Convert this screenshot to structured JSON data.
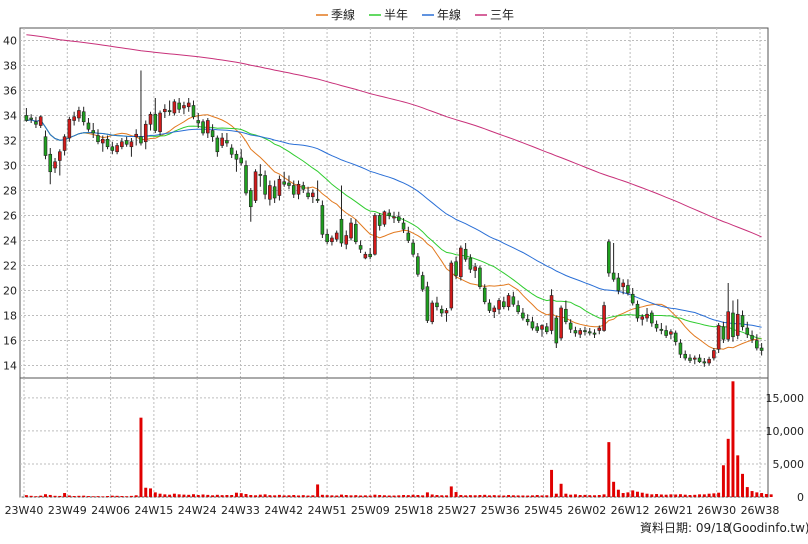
{
  "chart_data": {
    "type": "candlestick",
    "legend": [
      {
        "label": "季線",
        "color": "#e2791e"
      },
      {
        "label": "半年",
        "color": "#2fcc2f"
      },
      {
        "label": "年線",
        "color": "#2a6fd6"
      },
      {
        "label": "三年",
        "color": "#c8317a"
      }
    ],
    "price_axis": {
      "ylim": [
        13,
        41
      ],
      "ticks": [
        14,
        16,
        18,
        20,
        22,
        24,
        26,
        28,
        30,
        32,
        34,
        36,
        38,
        40
      ]
    },
    "volume_axis": {
      "ylim": [
        0,
        18000
      ],
      "ticks": [
        0,
        5000,
        10000,
        15000
      ],
      "tick_labels": [
        "0",
        "5,000",
        "10,000",
        "15,000"
      ]
    },
    "x_tick_labels": [
      "23W40",
      "23W49",
      "24W06",
      "24W15",
      "24W24",
      "24W33",
      "24W42",
      "24W51",
      "25W09",
      "25W18",
      "25W27",
      "25W36",
      "25W45",
      "26W02",
      "26W12",
      "26W21",
      "26W30",
      "26W38"
    ],
    "candles": [
      [
        34,
        34.6,
        33.5,
        33.6
      ],
      [
        33.8,
        34.1,
        33.4,
        33.7
      ],
      [
        33.5,
        33.9,
        33,
        33.3
      ],
      [
        33.2,
        34,
        33,
        33.9
      ],
      [
        32.3,
        32.8,
        30.5,
        30.8
      ],
      [
        30.9,
        31.4,
        28.5,
        29.5
      ],
      [
        29.8,
        30.6,
        29.4,
        30.3
      ],
      [
        30.4,
        31.3,
        29.2,
        31.1
      ],
      [
        31.2,
        32.5,
        30.8,
        32.3
      ],
      [
        32.2,
        33.9,
        31.9,
        33.7
      ],
      [
        33.6,
        34.3,
        33.2,
        33.9
      ],
      [
        33.8,
        34.7,
        33.5,
        34.4
      ],
      [
        34.3,
        34.7,
        33.2,
        33.5
      ],
      [
        33.4,
        33.8,
        32.7,
        32.9
      ],
      [
        32.8,
        33.4,
        32.2,
        32.6
      ],
      [
        32.4,
        32.9,
        31.7,
        31.9
      ],
      [
        31.8,
        32.4,
        31.1,
        32.1
      ],
      [
        32.1,
        32.4,
        31.3,
        31.5
      ],
      [
        31.5,
        31.9,
        30.9,
        31.2
      ],
      [
        31.1,
        31.8,
        30.9,
        31.6
      ],
      [
        31.5,
        32.2,
        31.3,
        31.9
      ],
      [
        32,
        32.3,
        31.5,
        31.7
      ],
      [
        31.5,
        32.2,
        30.7,
        31.9
      ],
      [
        32.3,
        32.9,
        31.6,
        32.5
      ],
      [
        32.3,
        37.6,
        31.6,
        31.8
      ],
      [
        31.9,
        33.6,
        31.3,
        33.3
      ],
      [
        33.3,
        34.3,
        32.8,
        34.1
      ],
      [
        34.1,
        35.4,
        32.6,
        32.8
      ],
      [
        32.7,
        34.4,
        32.4,
        34.2
      ],
      [
        34.3,
        34.9,
        33.8,
        34.5
      ],
      [
        34.4,
        35.2,
        34,
        34.3
      ],
      [
        34.2,
        35.3,
        34,
        35.1
      ],
      [
        35,
        35.4,
        34.2,
        34.5
      ],
      [
        34.6,
        35.1,
        34.1,
        34.8
      ],
      [
        34.7,
        35.4,
        34.3,
        35
      ],
      [
        34.8,
        35.2,
        33.7,
        33.9
      ],
      [
        33.6,
        34.2,
        33,
        33.4
      ],
      [
        33.5,
        33.7,
        32.4,
        32.6
      ],
      [
        32.6,
        33.8,
        32.2,
        33.6
      ],
      [
        32.8,
        33.3,
        31.9,
        32.3
      ],
      [
        32.2,
        32.4,
        30.7,
        31.1
      ],
      [
        31.6,
        32.6,
        31.4,
        32.2
      ],
      [
        32,
        32.6,
        31.5,
        31.8
      ],
      [
        31.4,
        31.7,
        30.6,
        30.9
      ],
      [
        30.9,
        31.2,
        29.5,
        30.5
      ],
      [
        30.6,
        31.3,
        30,
        30.2
      ],
      [
        30,
        30.4,
        27.6,
        27.8
      ],
      [
        28,
        28.2,
        25.5,
        26.7
      ],
      [
        27.2,
        29.7,
        27,
        29.5
      ],
      [
        29.3,
        30.1,
        28.3,
        29.2
      ],
      [
        29.2,
        29.6,
        27.3,
        27.7
      ],
      [
        27.3,
        28.8,
        26.8,
        28.4
      ],
      [
        28.3,
        28.8,
        27,
        27.4
      ],
      [
        27.6,
        29.2,
        27.2,
        28.9
      ],
      [
        28.7,
        29.5,
        28.3,
        28.5
      ],
      [
        28.6,
        29.2,
        28.1,
        28.4
      ],
      [
        28.4,
        28.8,
        27.4,
        27.7
      ],
      [
        27.7,
        28.8,
        27.3,
        28.5
      ],
      [
        28.4,
        28.7,
        27.8,
        28.1
      ],
      [
        27.8,
        28.3,
        27.3,
        27.5
      ],
      [
        27.5,
        28.1,
        27,
        27.8
      ],
      [
        27.3,
        28.8,
        27,
        27.2
      ],
      [
        26.8,
        27.2,
        24.2,
        24.5
      ],
      [
        24.5,
        24.9,
        23.7,
        23.9
      ],
      [
        23.9,
        24.4,
        23.6,
        24.2
      ],
      [
        24.1,
        24.8,
        23.9,
        24.6
      ],
      [
        25.7,
        28.4,
        23.5,
        23.8
      ],
      [
        23.7,
        24.8,
        23.3,
        24.4
      ],
      [
        24.2,
        25.8,
        24,
        25.4
      ],
      [
        25.3,
        25.7,
        23.7,
        23.9
      ],
      [
        23.6,
        24,
        23,
        23.3
      ],
      [
        22.6,
        23.1,
        22.5,
        22.9
      ],
      [
        22.9,
        23.4,
        22.5,
        22.7
      ],
      [
        22.9,
        26.2,
        22.8,
        26
      ],
      [
        26,
        26.2,
        24.8,
        25.2
      ],
      [
        25.3,
        26.4,
        25.1,
        26.3
      ],
      [
        26.2,
        26.5,
        25.7,
        26
      ],
      [
        25.8,
        26.3,
        25.4,
        25.9
      ],
      [
        25.9,
        26.3,
        25.4,
        25.6
      ],
      [
        25.4,
        25.8,
        24.6,
        24.9
      ],
      [
        24.6,
        25.1,
        23.8,
        24
      ],
      [
        23.8,
        24.1,
        22.7,
        22.9
      ],
      [
        22.7,
        23,
        21.1,
        21.3
      ],
      [
        21.2,
        21.5,
        19.9,
        20.1
      ],
      [
        20.3,
        20.7,
        17.4,
        17.6
      ],
      [
        17.5,
        19.2,
        17.3,
        19
      ],
      [
        19,
        19.5,
        18.4,
        18.7
      ],
      [
        18.5,
        18.8,
        17.9,
        18.2
      ],
      [
        18.2,
        18.6,
        17.5,
        18.4
      ],
      [
        18.6,
        22.4,
        18.4,
        22.2
      ],
      [
        22.3,
        22.7,
        20.9,
        21.2
      ],
      [
        21.1,
        23.6,
        20.8,
        23.4
      ],
      [
        23.3,
        23.8,
        22.3,
        22.5
      ],
      [
        22.6,
        22.9,
        21.4,
        21.7
      ],
      [
        21.6,
        22.2,
        21,
        21.9
      ],
      [
        21.8,
        22,
        20.1,
        20.3
      ],
      [
        20.2,
        20.5,
        18.9,
        19.1
      ],
      [
        19,
        19.3,
        18.2,
        18.4
      ],
      [
        18.3,
        18.8,
        17.8,
        18.6
      ],
      [
        18.5,
        19.4,
        18.1,
        19.2
      ],
      [
        19.1,
        19.5,
        18.5,
        18.7
      ],
      [
        18.7,
        19.8,
        18.4,
        19.6
      ],
      [
        19.5,
        19.9,
        18.7,
        18.9
      ],
      [
        18.8,
        19.2,
        18.1,
        18.3
      ],
      [
        18.2,
        18.6,
        17.6,
        17.8
      ],
      [
        17.7,
        18.1,
        17.2,
        17.5
      ],
      [
        17.5,
        17.9,
        16.8,
        17
      ],
      [
        17.1,
        17.4,
        16.6,
        16.8
      ],
      [
        16.9,
        17.3,
        16.3,
        17.2
      ],
      [
        17.1,
        17.4,
        16.5,
        16.7
      ],
      [
        16.8,
        20.1,
        16.5,
        19.6
      ],
      [
        17.8,
        18,
        15.4,
        15.8
      ],
      [
        16.2,
        18.8,
        16,
        18.6
      ],
      [
        18.5,
        19.2,
        17.3,
        17.5
      ],
      [
        17.4,
        17.7,
        16.6,
        16.9
      ],
      [
        16.8,
        17.1,
        16.3,
        16.6
      ],
      [
        16.5,
        17,
        16.2,
        16.8
      ],
      [
        16.8,
        17.1,
        16.4,
        16.7
      ],
      [
        16.7,
        17,
        16.4,
        16.6
      ],
      [
        16.6,
        16.9,
        16.2,
        16.5
      ],
      [
        16.8,
        17.2,
        16.5,
        17
      ],
      [
        16.8,
        19.1,
        16.7,
        18.8
      ],
      [
        23.9,
        24.1,
        21.1,
        21.4
      ],
      [
        21.4,
        23.8,
        20.7,
        20.9
      ],
      [
        21,
        21.4,
        19.7,
        20
      ],
      [
        20.3,
        20.9,
        19.7,
        20.6
      ],
      [
        20.4,
        20.9,
        19.6,
        19.8
      ],
      [
        19.7,
        20.2,
        18.8,
        19
      ],
      [
        18.9,
        19.2,
        17.5,
        17.8
      ],
      [
        17.7,
        18.1,
        17.2,
        17.9
      ],
      [
        17.8,
        18.6,
        17.5,
        18.1
      ],
      [
        18.2,
        18.4,
        17.1,
        17.4
      ],
      [
        17.3,
        17.6,
        16.7,
        17
      ],
      [
        16.9,
        17.4,
        16.5,
        16.8
      ],
      [
        16.8,
        17.2,
        16.2,
        16.4
      ],
      [
        16.5,
        16.9,
        16.1,
        16.7
      ],
      [
        16.6,
        16.8,
        15.6,
        15.9
      ],
      [
        15.8,
        16.1,
        14.6,
        14.9
      ],
      [
        14.9,
        15.2,
        14.4,
        14.6
      ],
      [
        14.6,
        14.9,
        14.2,
        14.4
      ],
      [
        14.5,
        14.8,
        14.1,
        14.6
      ],
      [
        14.6,
        14.9,
        14.2,
        14.3
      ],
      [
        14.3,
        14.6,
        13.9,
        14.2
      ],
      [
        14.2,
        14.7,
        14,
        14.5
      ],
      [
        14.6,
        15.4,
        14.4,
        15.2
      ],
      [
        15.3,
        17.4,
        15,
        17.2
      ],
      [
        17.1,
        17.5,
        15.8,
        16.1
      ],
      [
        16.1,
        20.6,
        15.9,
        18.3
      ],
      [
        18.2,
        19.2,
        15.9,
        16.3
      ],
      [
        16.4,
        19.3,
        16.1,
        18.1
      ],
      [
        18,
        18.4,
        16.8,
        17.1
      ],
      [
        17,
        17.5,
        16.2,
        16.5
      ],
      [
        16.4,
        16.8,
        15.8,
        16.1
      ],
      [
        16,
        16.5,
        15.2,
        15.4
      ],
      [
        15.4,
        15.8,
        14.8,
        15.2
      ]
    ],
    "volumes": [
      280,
      180,
      120,
      200,
      420,
      310,
      180,
      160,
      600,
      230,
      150,
      180,
      200,
      140,
      110,
      130,
      100,
      150,
      200,
      180,
      150,
      120,
      170,
      260,
      12000,
      1400,
      1300,
      700,
      500,
      400,
      350,
      500,
      400,
      360,
      330,
      420,
      300,
      380,
      320,
      260,
      330,
      280,
      300,
      300,
      650,
      580,
      450,
      300,
      260,
      350,
      400,
      280,
      250,
      320,
      240,
      260,
      300,
      230,
      280,
      220,
      260,
      1900,
      330,
      280,
      250,
      230,
      360,
      300,
      250,
      280,
      230,
      250,
      220,
      350,
      300,
      260,
      230,
      220,
      250,
      300,
      280,
      340,
      300,
      250,
      700,
      380,
      300,
      260,
      250,
      1600,
      750,
      300,
      250,
      280,
      260,
      300,
      330,
      250,
      280,
      240,
      220,
      300,
      260,
      240,
      230,
      220,
      250,
      300,
      240,
      260,
      4100,
      500,
      2000,
      500,
      350,
      400,
      300,
      320,
      280,
      260,
      300,
      400,
      8300,
      2300,
      1100,
      600,
      700,
      1000,
      800,
      650,
      500,
      400,
      450,
      380,
      350,
      400,
      380,
      420,
      350,
      300,
      330,
      400,
      400,
      500,
      550,
      650,
      4800,
      8800,
      17500,
      6300,
      3500,
      1500,
      900,
      700,
      600,
      450,
      400
    ]
  },
  "footer": {
    "date_label": "資料日期: 09/18",
    "source": "(Goodinfo.tw)"
  }
}
